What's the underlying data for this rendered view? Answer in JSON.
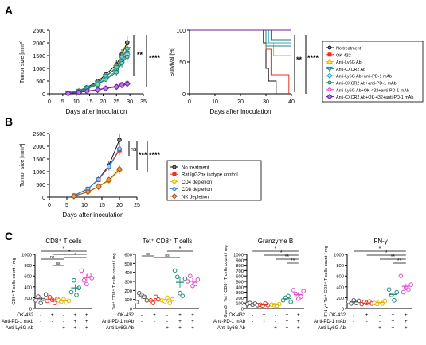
{
  "panels": {
    "A": "A",
    "B": "B",
    "C": "C"
  },
  "series_styles": [
    {
      "name": "No treatment",
      "color": "#111111",
      "shape": "circle",
      "fill": "#888888"
    },
    {
      "name": "OK-432",
      "color": "#e8331c",
      "shape": "square",
      "fill": "#e8331c"
    },
    {
      "name": "Anti-Ly6G Ab",
      "color": "#e0b600",
      "shape": "triangle-up",
      "fill": "#ffe94d"
    },
    {
      "name": "Anti-CXCR2 Ab",
      "color": "#1f8a7a",
      "shape": "triangle-down",
      "fill": "#5ee0c8"
    },
    {
      "name": "Anti-Ly6G Ab+anti-PD-1 mAb",
      "color": "#2aa1d6",
      "shape": "diamond",
      "fill": "#aee4f8"
    },
    {
      "name": "Anti-CXCR2 Ab+anti-PD-1 mAb",
      "color": "#1b7a5a",
      "shape": "circle",
      "fill": "#7fd8a6"
    },
    {
      "name": "Anti-Ly6G Ab+OK-432+anti-PD-1 mAb",
      "color": "#e24bd0",
      "shape": "circle",
      "fill": "#f7a6ee"
    },
    {
      "name": "Anti-CXCR2 Ab+OK-432+anti-PD-1 mAb",
      "color": "#6a1fa0",
      "shape": "diamond",
      "fill": "#b07ae0"
    }
  ],
  "chart_data": [
    {
      "id": "A1",
      "type": "line",
      "title": "",
      "xlabel": "Days after inoculation",
      "ylabel": "Tumor size [mm³]",
      "xlim": [
        0,
        35
      ],
      "ylim": [
        0,
        2500
      ],
      "xticks": [
        0,
        5,
        10,
        15,
        20,
        25,
        30,
        35
      ],
      "yticks": [
        0,
        500,
        1000,
        1500,
        2000,
        2500
      ],
      "x": [
        7,
        11,
        14,
        18,
        21,
        25,
        27,
        29
      ],
      "series": [
        {
          "name": "No treatment",
          "values": [
            30,
            120,
            260,
            480,
            760,
            1150,
            1550,
            2020
          ],
          "err": [
            10,
            25,
            50,
            80,
            110,
            160,
            200,
            260
          ]
        },
        {
          "name": "OK-432",
          "values": [
            25,
            100,
            220,
            420,
            680,
            1000,
            1300,
            1600
          ],
          "err": [
            10,
            20,
            40,
            70,
            100,
            140,
            180,
            230
          ]
        },
        {
          "name": "Anti-Ly6G Ab",
          "values": [
            25,
            110,
            230,
            440,
            700,
            1050,
            1450,
            1800
          ],
          "err": [
            10,
            20,
            40,
            70,
            100,
            150,
            190,
            240
          ]
        },
        {
          "name": "Anti-CXCR2 Ab",
          "values": [
            25,
            105,
            225,
            430,
            690,
            1030,
            1420,
            1750
          ],
          "err": [
            10,
            20,
            40,
            70,
            100,
            150,
            190,
            240
          ]
        },
        {
          "name": "Anti-Ly6G Ab+anti-PD-1 mAb",
          "values": [
            20,
            95,
            200,
            380,
            600,
            900,
            1250,
            1550
          ],
          "err": [
            8,
            20,
            35,
            60,
            90,
            130,
            170,
            220
          ]
        },
        {
          "name": "Anti-CXCR2 Ab+anti-PD-1 mAb",
          "values": [
            20,
            90,
            190,
            360,
            560,
            850,
            1200,
            1450
          ],
          "err": [
            8,
            20,
            35,
            60,
            90,
            130,
            170,
            220
          ]
        },
        {
          "name": "Anti-Ly6G Ab+OK-432+anti-PD-1 mAb",
          "values": [
            15,
            60,
            110,
            170,
            230,
            300,
            380,
            430
          ],
          "err": [
            5,
            15,
            25,
            40,
            55,
            70,
            90,
            110
          ]
        },
        {
          "name": "Anti-CXCR2 Ab+OK-432+anti-PD-1 mAb",
          "values": [
            15,
            55,
            100,
            150,
            210,
            270,
            340,
            390
          ],
          "err": [
            5,
            15,
            25,
            40,
            55,
            70,
            90,
            110
          ]
        }
      ],
      "annotations": [
        "**",
        "****"
      ]
    },
    {
      "id": "A2",
      "type": "line",
      "title": "",
      "xlabel": "Days after inoculation",
      "ylabel": "Survival [%]",
      "xlim": [
        0,
        40
      ],
      "ylim": [
        0,
        100
      ],
      "xticks": [
        0,
        10,
        20,
        30,
        40
      ],
      "yticks": [
        0,
        50,
        100
      ],
      "series": [
        {
          "name": "No treatment",
          "steps": [
            [
              0,
              100
            ],
            [
              29,
              100
            ],
            [
              29,
              80
            ],
            [
              30,
              80
            ],
            [
              30,
              40
            ],
            [
              31,
              40
            ],
            [
              31,
              20
            ],
            [
              34,
              20
            ],
            [
              34,
              0
            ]
          ]
        },
        {
          "name": "OK-432",
          "steps": [
            [
              0,
              100
            ],
            [
              30,
              100
            ],
            [
              30,
              70
            ],
            [
              32,
              70
            ],
            [
              32,
              30
            ],
            [
              39,
              30
            ],
            [
              39,
              0
            ]
          ]
        },
        {
          "name": "Anti-Ly6G Ab",
          "steps": [
            [
              0,
              100
            ],
            [
              30,
              100
            ],
            [
              30,
              80
            ],
            [
              33,
              80
            ],
            [
              33,
              60
            ],
            [
              40,
              60
            ]
          ]
        },
        {
          "name": "Anti-CXCR2 Ab",
          "steps": [
            [
              0,
              100
            ],
            [
              30,
              100
            ],
            [
              30,
              75
            ],
            [
              40,
              75
            ]
          ]
        },
        {
          "name": "Anti-Ly6G Ab+anti-PD-1 mAb",
          "steps": [
            [
              0,
              100
            ],
            [
              31,
              100
            ],
            [
              31,
              80
            ],
            [
              40,
              80
            ]
          ]
        },
        {
          "name": "Anti-CXCR2 Ab+anti-PD-1 mAb",
          "steps": [
            [
              0,
              100
            ],
            [
              32,
              100
            ],
            [
              32,
              85
            ],
            [
              40,
              85
            ]
          ]
        },
        {
          "name": "Anti-Ly6G Ab+OK-432+anti-PD-1 mAb",
          "steps": [
            [
              0,
              100
            ],
            [
              40,
              100
            ]
          ]
        },
        {
          "name": "Anti-CXCR2 Ab+OK-432+anti-PD-1 mAb",
          "steps": [
            [
              0,
              100
            ],
            [
              40,
              100
            ]
          ]
        }
      ],
      "annotations": [
        "**",
        "****"
      ]
    },
    {
      "id": "B",
      "type": "line",
      "title": "",
      "xlabel": "Days after inoculation",
      "ylabel": "Tumor size [mm³]",
      "xlim": [
        0,
        25
      ],
      "ylim": [
        0,
        2500
      ],
      "xticks": [
        0,
        5,
        10,
        15,
        20,
        25
      ],
      "yticks": [
        0,
        500,
        1000,
        1500,
        2000,
        2500
      ],
      "x": [
        7,
        11,
        14,
        17,
        20
      ],
      "legend": [
        {
          "name": "No treatment",
          "color": "#111111",
          "shape": "circle",
          "fill": "#888888"
        },
        {
          "name": "Rat IgG2bκ isotype control",
          "color": "#e8331c",
          "shape": "square",
          "fill": "#e8331c"
        },
        {
          "name": "CD4 depletion",
          "color": "#e0b600",
          "shape": "diamond",
          "fill": "#ffe94d"
        },
        {
          "name": "CD8 depletion",
          "color": "#2a7fd6",
          "shape": "circle",
          "fill": "#9fd0ff"
        },
        {
          "name": "NK depletion",
          "color": "#a0522d",
          "shape": "diamond",
          "fill": "#f0a040"
        }
      ],
      "series": [
        {
          "name": "No treatment",
          "values": [
            60,
            330,
            700,
            1250,
            2250
          ],
          "err": [
            15,
            50,
            100,
            150,
            230
          ]
        },
        {
          "name": "Rat IgG2bκ isotype control",
          "values": [
            55,
            320,
            680,
            1180,
            1850
          ],
          "err": [
            15,
            50,
            90,
            140,
            200
          ]
        },
        {
          "name": "CD4 depletion",
          "values": [
            40,
            200,
            400,
            650,
            1050
          ],
          "err": [
            10,
            40,
            70,
            100,
            140
          ]
        },
        {
          "name": "CD8 depletion",
          "values": [
            55,
            320,
            690,
            1200,
            1900
          ],
          "err": [
            15,
            50,
            90,
            140,
            200
          ]
        },
        {
          "name": "NK depletion",
          "values": [
            40,
            210,
            420,
            680,
            1100
          ],
          "err": [
            10,
            40,
            70,
            100,
            140
          ]
        }
      ],
      "annotations": [
        "ns",
        "***",
        "****"
      ]
    },
    {
      "id": "C1",
      "type": "scatter",
      "title": "CD8⁺ T cells",
      "ylabel": "CD8⁺ T cells count / mg",
      "ylim": [
        0,
        1000
      ],
      "yticks": [
        0,
        200,
        400,
        600,
        800,
        1000
      ],
      "colors": [
        "#555555",
        "#e8331c",
        "#e0b600",
        "#1f8a7a",
        "#e24bd0"
      ],
      "groups": [
        {
          "points": [
            150,
            220,
            100,
            180,
            260
          ],
          "mean": 180,
          "err": 30
        },
        {
          "points": [
            140,
            210,
            160,
            100,
            180
          ],
          "mean": 160,
          "err": 22
        },
        {
          "points": [
            150,
            120,
            170,
            110,
            140
          ],
          "mean": 140,
          "err": 15
        },
        {
          "points": [
            300,
            520,
            250,
            380
          ],
          "mean": 380,
          "err": 70
        },
        {
          "points": [
            700,
            520,
            450,
            620,
            560
          ],
          "mean": 570,
          "err": 60
        }
      ],
      "sig": [
        "ns",
        "ns",
        "*",
        "*",
        "*"
      ]
    },
    {
      "id": "C2",
      "type": "scatter",
      "title": "Tet⁺ CD8⁺ T cells",
      "ylabel": "Tet⁺ CD8⁺ T cells count / mg",
      "ylim": [
        0,
        600
      ],
      "yticks": [
        0,
        100,
        200,
        300,
        400,
        500,
        600
      ],
      "colors": [
        "#555555",
        "#e8331c",
        "#e0b600",
        "#1f8a7a",
        "#e24bd0"
      ],
      "groups": [
        {
          "points": [
            70,
            170,
            150,
            130,
            90
          ],
          "mean": 130,
          "err": 25
        },
        {
          "points": [
            90,
            60,
            130,
            100
          ],
          "mean": 90,
          "err": 18
        },
        {
          "points": [
            90,
            80,
            120,
            60,
            100
          ],
          "mean": 95,
          "err": 15
        },
        {
          "points": [
            420,
            350,
            170,
            140,
            330
          ],
          "mean": 290,
          "err": 60
        },
        {
          "points": [
            300,
            360,
            250,
            270,
            320
          ],
          "mean": 300,
          "err": 35
        }
      ],
      "sig": [
        "ns",
        "ns",
        "*"
      ]
    },
    {
      "id": "C3",
      "type": "scatter",
      "title": "Granzyme B",
      "ylabel": "GzmB⁺ Tet⁺ CD8⁺ T cells count / mg",
      "ylim": [
        0,
        1000
      ],
      "yticks": [
        0,
        100,
        200,
        300,
        400,
        500,
        600,
        700,
        800,
        900,
        1000
      ],
      "colors": [
        "#555555",
        "#e8331c",
        "#e0b600",
        "#1f8a7a",
        "#e24bd0"
      ],
      "groups": [
        {
          "points": [
            80,
            100,
            70,
            90,
            60
          ],
          "mean": 80,
          "err": 10
        },
        {
          "points": [
            70,
            50,
            90,
            60
          ],
          "mean": 65,
          "err": 10
        },
        {
          "points": [
            70,
            60,
            50,
            80
          ],
          "mean": 65,
          "err": 8
        },
        {
          "points": [
            150,
            200,
            230,
            120
          ],
          "mean": 180,
          "err": 30
        },
        {
          "points": [
            340,
            270,
            180,
            220,
            320
          ],
          "mean": 260,
          "err": 40
        }
      ],
      "sig": [
        "*",
        "*",
        "**",
        "**"
      ]
    },
    {
      "id": "C4",
      "type": "scatter",
      "title": "IFN-γ",
      "ylabel": "IFN-γ⁺ Tet⁺ CD8⁺ T cells count / mg",
      "ylim": [
        0,
        1000
      ],
      "yticks": [
        0,
        200,
        400,
        600,
        800,
        1000
      ],
      "colors": [
        "#555555",
        "#e8331c",
        "#e0b600",
        "#1f8a7a",
        "#e24bd0"
      ],
      "groups": [
        {
          "points": [
            120,
            90,
            150,
            100,
            140
          ],
          "mean": 120,
          "err": 15
        },
        {
          "points": [
            80,
            120,
            100,
            130,
            90
          ],
          "mean": 100,
          "err": 12
        },
        {
          "points": [
            100,
            80,
            120,
            90,
            140
          ],
          "mean": 110,
          "err": 12
        },
        {
          "points": [
            350,
            250,
            150,
            300
          ],
          "mean": 260,
          "err": 50
        },
        {
          "points": [
            600,
            300,
            380,
            350,
            440
          ],
          "mean": 410,
          "err": 50
        }
      ],
      "sig": [
        "*",
        "*",
        "**",
        "**"
      ]
    }
  ],
  "treatment_table": {
    "rows": [
      {
        "label": "OK-432",
        "signs": [
          "-",
          "+",
          "-",
          "+",
          "+"
        ]
      },
      {
        "label": "Anti-PD-1 mAb",
        "signs": [
          "-",
          "-",
          "-",
          "+",
          "+"
        ]
      },
      {
        "label": "Anti-Ly6G Ab",
        "signs": [
          "-",
          "-",
          "+",
          "+",
          "+"
        ]
      }
    ]
  }
}
